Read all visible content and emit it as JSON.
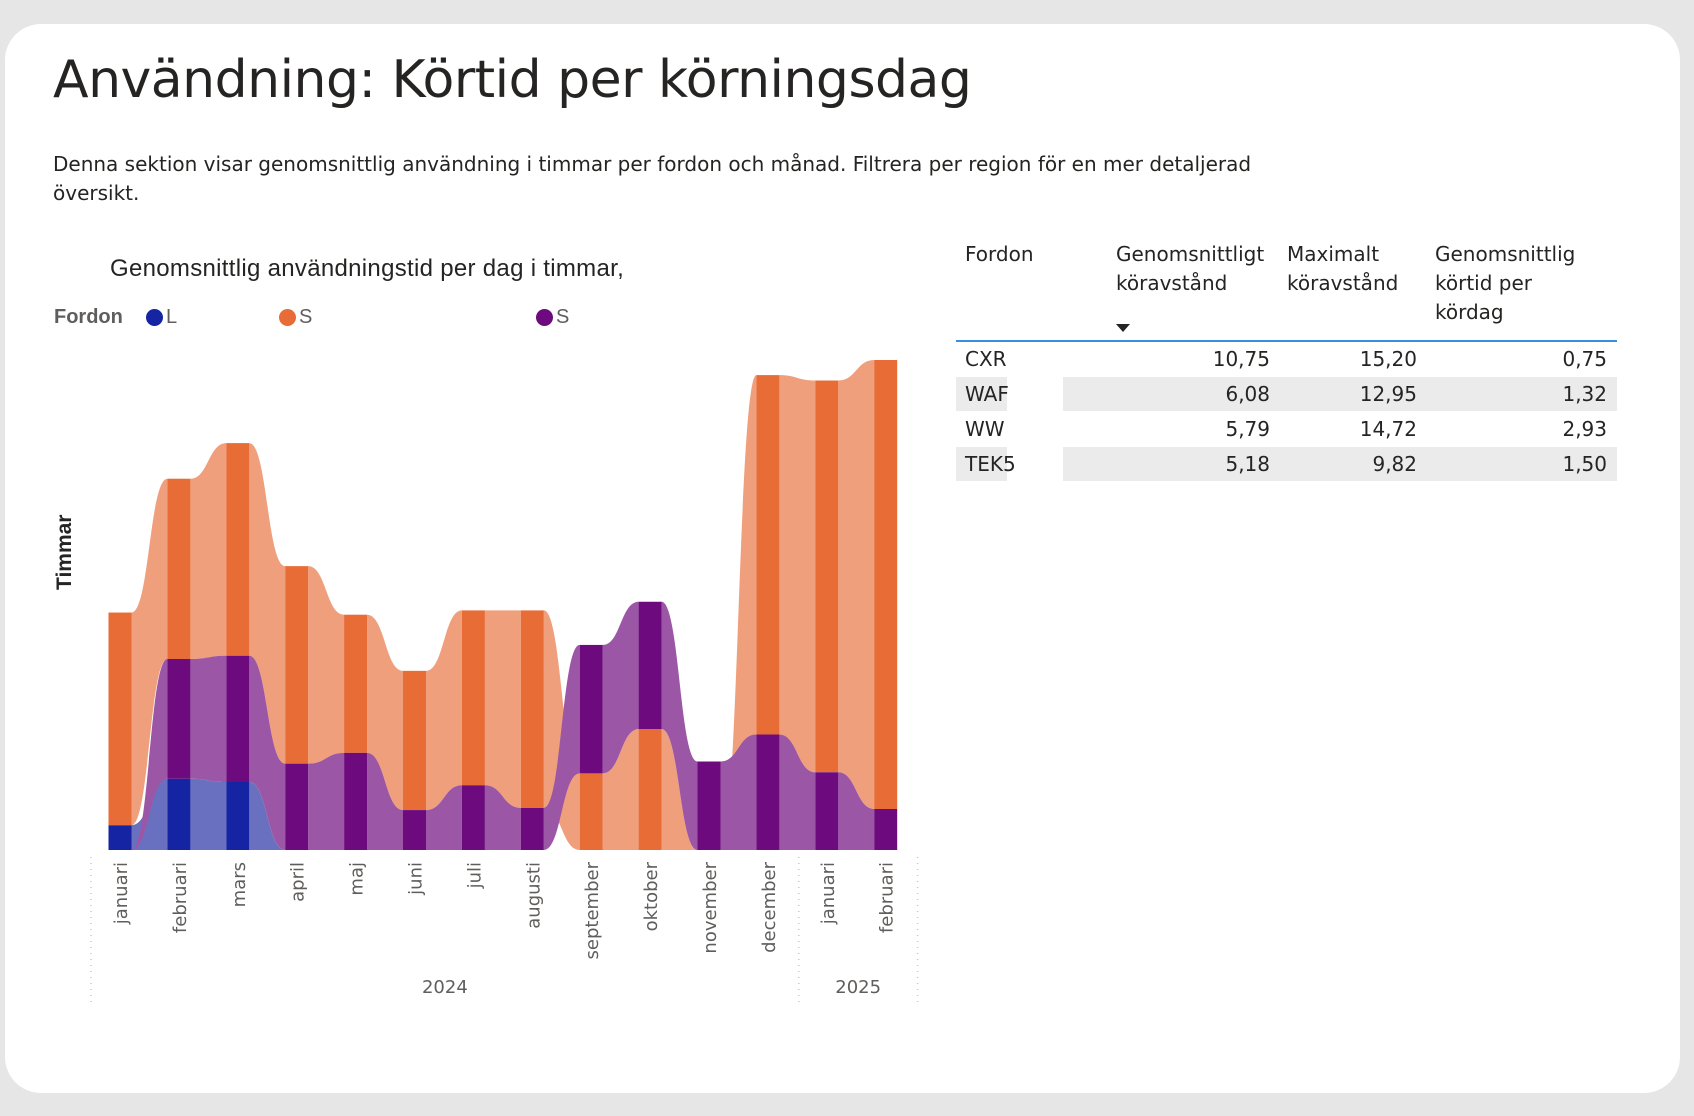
{
  "page": {
    "title": "Användning: Körtid per körningsdag",
    "description": "Denna sektion visar genomsnittlig användning i timmar per fordon och månad. Filtrera per region för en mer detaljerad översikt."
  },
  "chart_data": {
    "type": "ribbon",
    "title": "Genomsnittlig användningstid per dag i timmar,",
    "ylabel": "Timmar",
    "xlabel": "",
    "legend_title": "Fordon",
    "legend_position": "top-left",
    "y_axis_ticks_shown": false,
    "grid": false,
    "categories": [
      "januari",
      "februari",
      "mars",
      "april",
      "maj",
      "juni",
      "juli",
      "augusti",
      "september",
      "oktober",
      "november",
      "december",
      "januari",
      "februari"
    ],
    "years": [
      {
        "label": "2024",
        "span": 12
      },
      {
        "label": "2025",
        "span": 2
      }
    ],
    "series": [
      {
        "name": "L",
        "color": "#1524a3",
        "ribbon_color": "#6a70c0",
        "values": [
          0.46,
          1.32,
          1.26,
          0,
          0,
          0,
          0,
          0,
          0,
          0,
          0,
          0,
          0,
          0
        ]
      },
      {
        "name": "S",
        "color": "#e86c35",
        "ribbon_color": "#f09f7c",
        "values": [
          3.94,
          3.34,
          3.94,
          3.66,
          2.56,
          2.58,
          3.24,
          3.66,
          1.42,
          2.24,
          0,
          6.66,
          7.26,
          8.32
        ]
      },
      {
        "name": "S",
        "color": "#6d0b7e",
        "ribbon_color": "#9b57a6",
        "values": [
          0,
          2.22,
          2.34,
          1.6,
          1.8,
          0.74,
          1.2,
          0.78,
          2.38,
          2.36,
          1.64,
          2.14,
          1.44,
          0.76
        ]
      }
    ]
  },
  "table": {
    "headers": [
      "Fordon",
      "Genomsnittligt köravstånd",
      "Maximalt köravstånd",
      "Genomsnittlig körtid per kördag"
    ],
    "sort_column": 1,
    "sort_direction": "descending",
    "rows": [
      [
        "CXR",
        "10,75",
        "15,20",
        "0,75"
      ],
      [
        "WAF",
        "6,08",
        "12,95",
        "1,32"
      ],
      [
        "WW",
        "5,79",
        "14,72",
        "2,93"
      ],
      [
        "TEK5",
        "5,18",
        "9,82",
        "1,50"
      ]
    ],
    "accent": "#3a8de0"
  }
}
